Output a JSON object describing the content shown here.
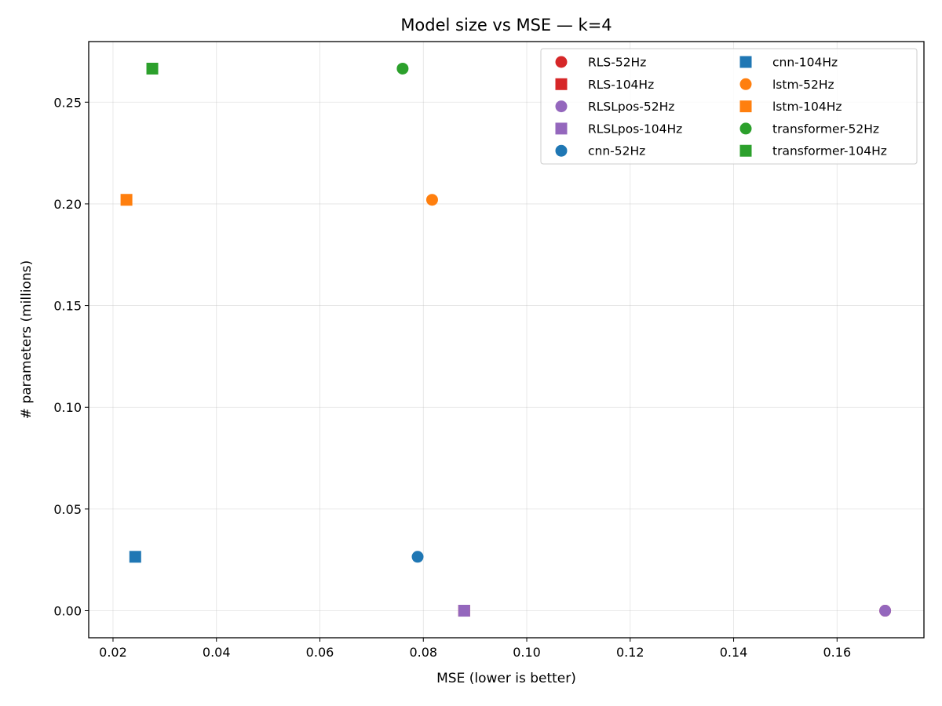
{
  "chart_data": {
    "type": "scatter",
    "title": "Model size vs MSE — k=4",
    "xlabel": "MSE (lower is better)",
    "ylabel": "# parameters (millions)",
    "xlim": [
      0.0153,
      0.1768
    ],
    "ylim": [
      -0.0133,
      0.2798
    ],
    "xticks": [
      0.02,
      0.04,
      0.06,
      0.08,
      0.1,
      0.12,
      0.14,
      0.16
    ],
    "xtick_labels": [
      "0.02",
      "0.04",
      "0.06",
      "0.08",
      "0.10",
      "0.12",
      "0.14",
      "0.16"
    ],
    "yticks": [
      0.0,
      0.05,
      0.1,
      0.15,
      0.2,
      0.25
    ],
    "ytick_labels": [
      "0.00",
      "0.05",
      "0.10",
      "0.15",
      "0.20",
      "0.25"
    ],
    "grid": true,
    "legend_position": "top-right",
    "legend_columns": 2,
    "series": [
      {
        "name": "RLS-52Hz",
        "marker": "circle",
        "color": "#d62728",
        "points": [
          [
            0.1693,
            0.0
          ]
        ]
      },
      {
        "name": "RLS-104Hz",
        "marker": "square",
        "color": "#d62728",
        "points": [
          [
            0.0879,
            0.0
          ]
        ]
      },
      {
        "name": "RLSLpos-52Hz",
        "marker": "circle",
        "color": "#9467bd",
        "points": [
          [
            0.1693,
            0.0
          ]
        ]
      },
      {
        "name": "RLSLpos-104Hz",
        "marker": "square",
        "color": "#9467bd",
        "points": [
          [
            0.0879,
            0.0
          ]
        ]
      },
      {
        "name": "cnn-52Hz",
        "marker": "circle",
        "color": "#1f77b4",
        "points": [
          [
            0.0789,
            0.0265
          ]
        ]
      },
      {
        "name": "cnn-104Hz",
        "marker": "square",
        "color": "#1f77b4",
        "points": [
          [
            0.0243,
            0.0265
          ]
        ]
      },
      {
        "name": "lstm-52Hz",
        "marker": "circle",
        "color": "#ff7f0e",
        "points": [
          [
            0.0817,
            0.202
          ]
        ]
      },
      {
        "name": "lstm-104Hz",
        "marker": "square",
        "color": "#ff7f0e",
        "points": [
          [
            0.0226,
            0.202
          ]
        ]
      },
      {
        "name": "transformer-52Hz",
        "marker": "circle",
        "color": "#2ca02c",
        "points": [
          [
            0.076,
            0.2665
          ]
        ]
      },
      {
        "name": "transformer-104Hz",
        "marker": "square",
        "color": "#2ca02c",
        "points": [
          [
            0.0276,
            0.2665
          ]
        ]
      }
    ]
  }
}
